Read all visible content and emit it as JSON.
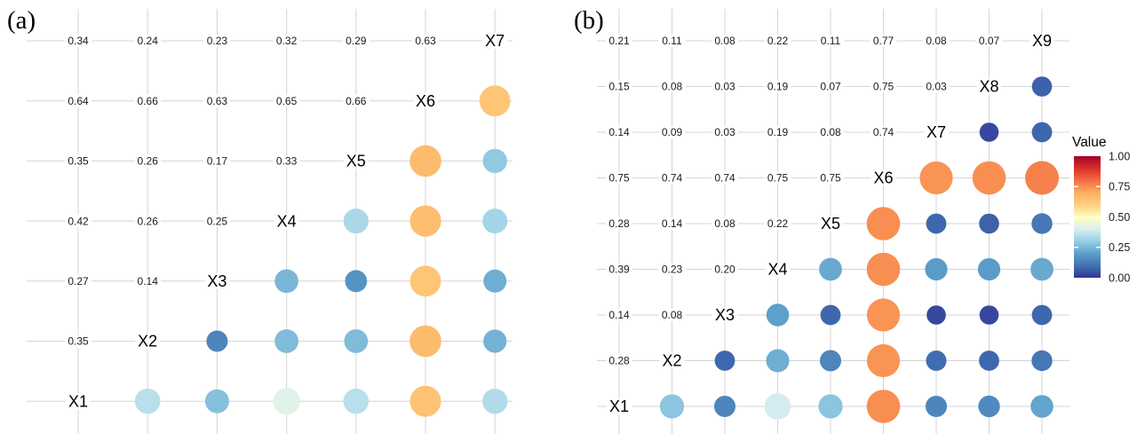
{
  "panels": [
    {
      "label": "(a)"
    },
    {
      "label": "(b)"
    }
  ],
  "legend": {
    "title": "Value",
    "tick_labels": [
      "1.00",
      "0.75",
      "0.50",
      "0.25",
      "0.00"
    ],
    "min": 0,
    "max": 1,
    "position": "right"
  },
  "colors": {
    "colormap_name": "RdYlBu reversed (blue=low, red=high)",
    "colormap_stops": [
      [
        0.0,
        "#313695"
      ],
      [
        0.1,
        "#4273b3"
      ],
      [
        0.2,
        "#5da0ca"
      ],
      [
        0.3,
        "#97cee4"
      ],
      [
        0.4,
        "#daeff2"
      ],
      [
        0.5,
        "#ffffbf"
      ],
      [
        0.6,
        "#fecf80"
      ],
      [
        0.7,
        "#fdae61"
      ],
      [
        0.8,
        "#f46d43"
      ],
      [
        0.9,
        "#d73027"
      ],
      [
        1.0,
        "#a50026"
      ]
    ],
    "gridline": "#d4d4d4",
    "number_text": "#1a1a1a",
    "diagonal_text": "#000000"
  },
  "chart_data": [
    {
      "type": "correlation-bubble-matrix",
      "panel": "(a)",
      "variables": [
        "X1",
        "X2",
        "X3",
        "X4",
        "X5",
        "X6",
        "X7"
      ],
      "layout_note": "diagonal runs top-right to bottom-left; upper-left triangle shows numeric values, lower-right triangle shows bubbles colored and sized by value; grid on; no axis labels",
      "correlations_lower_triangle": {
        "X2": [
          0.35
        ],
        "X3": [
          0.27,
          0.14
        ],
        "X4": [
          0.42,
          0.26,
          0.25
        ],
        "X5": [
          0.35,
          0.26,
          0.17,
          0.33
        ],
        "X6": [
          0.64,
          0.66,
          0.63,
          0.65,
          0.66
        ],
        "X7": [
          0.34,
          0.24,
          0.23,
          0.32,
          0.29,
          0.63
        ]
      }
    },
    {
      "type": "correlation-bubble-matrix",
      "panel": "(b)",
      "variables": [
        "X1",
        "X2",
        "X3",
        "X4",
        "X5",
        "X6",
        "X7",
        "X8",
        "X9"
      ],
      "layout_note": "diagonal runs top-right to bottom-left; upper-left triangle shows numeric values, lower-right triangle shows bubbles colored and sized by value; grid on; shared colorbar legend at right",
      "correlations_lower_triangle": {
        "X2": [
          0.28
        ],
        "X3": [
          0.14,
          0.08
        ],
        "X4": [
          0.39,
          0.23,
          0.2
        ],
        "X5": [
          0.28,
          0.14,
          0.08,
          0.22
        ],
        "X6": [
          0.75,
          0.74,
          0.74,
          0.75,
          0.75
        ],
        "X7": [
          0.14,
          0.09,
          0.03,
          0.19,
          0.08,
          0.74
        ],
        "X8": [
          0.15,
          0.08,
          0.03,
          0.19,
          0.07,
          0.75,
          0.03
        ],
        "X9": [
          0.21,
          0.11,
          0.08,
          0.22,
          0.11,
          0.77,
          0.08,
          0.07
        ]
      }
    }
  ]
}
